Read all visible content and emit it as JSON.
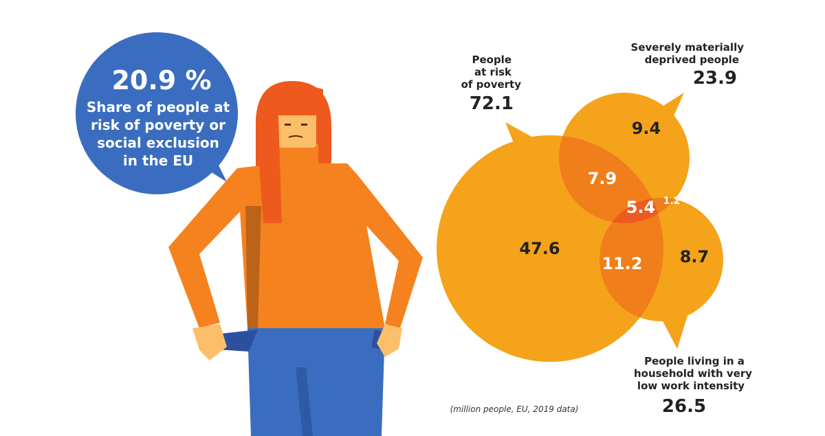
{
  "speech_bubble": {
    "headline": "20.9 %",
    "lines": [
      "Share of people at",
      "risk of poverty or",
      "social exclusion",
      "in the EU"
    ]
  },
  "venn": {
    "risk_of_poverty": {
      "label_lines": [
        "People",
        "at risk",
        "of poverty"
      ],
      "total": "72.1"
    },
    "materially_deprived": {
      "label_lines": [
        "Severely materially",
        "deprived people"
      ],
      "total": "23.9"
    },
    "low_work_intensity": {
      "label_lines": [
        "People living in a",
        "household with very",
        "low work intensity"
      ],
      "total": "26.5"
    },
    "regions": {
      "poverty_only": "47.6",
      "deprived_only": "9.4",
      "work_only": "8.7",
      "poverty_deprived": "7.9",
      "poverty_work": "11.2",
      "deprived_work": "1.2",
      "all_three": "5.4"
    },
    "note": "(million people, EU, 2019 data)"
  },
  "colors": {
    "bubble_blue": "#3A6DBF",
    "venn_orange": "#F5A31A",
    "overlap_dark": "#F07E1A",
    "center": "#EE5A20",
    "hair": "#EE5A1E",
    "sweater": "#F5821F",
    "jeans": "#3A6DBF",
    "skin": "#FBBF6A"
  }
}
